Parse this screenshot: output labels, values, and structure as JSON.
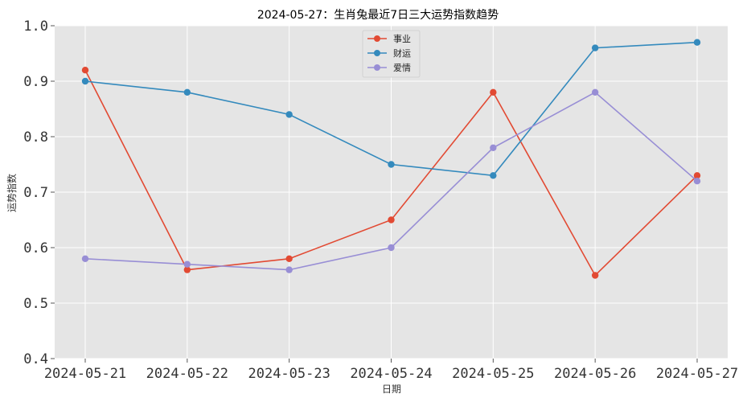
{
  "chart_data": {
    "type": "line",
    "title": "2024-05-27：生肖兔最近7日三大运势指数趋势",
    "xlabel": "日期",
    "ylabel": "运势指数",
    "categories": [
      "2024-05-21",
      "2024-05-22",
      "2024-05-23",
      "2024-05-24",
      "2024-05-25",
      "2024-05-26",
      "2024-05-27"
    ],
    "yticks": [
      "0.4",
      "0.5",
      "0.6",
      "0.7",
      "0.8",
      "0.9",
      "1.0"
    ],
    "ylim": [
      0.4,
      1.0
    ],
    "grid": true,
    "legend_position": "top-center",
    "series": [
      {
        "name": "事业",
        "color": "#E24A33",
        "values": [
          0.92,
          0.56,
          0.58,
          0.65,
          0.88,
          0.55,
          0.73
        ]
      },
      {
        "name": "财运",
        "color": "#348ABD",
        "values": [
          0.9,
          0.88,
          0.84,
          0.75,
          0.73,
          0.96,
          0.97
        ]
      },
      {
        "name": "爱情",
        "color": "#988ED5",
        "values": [
          0.58,
          0.57,
          0.56,
          0.6,
          0.78,
          0.88,
          0.72
        ]
      }
    ]
  }
}
